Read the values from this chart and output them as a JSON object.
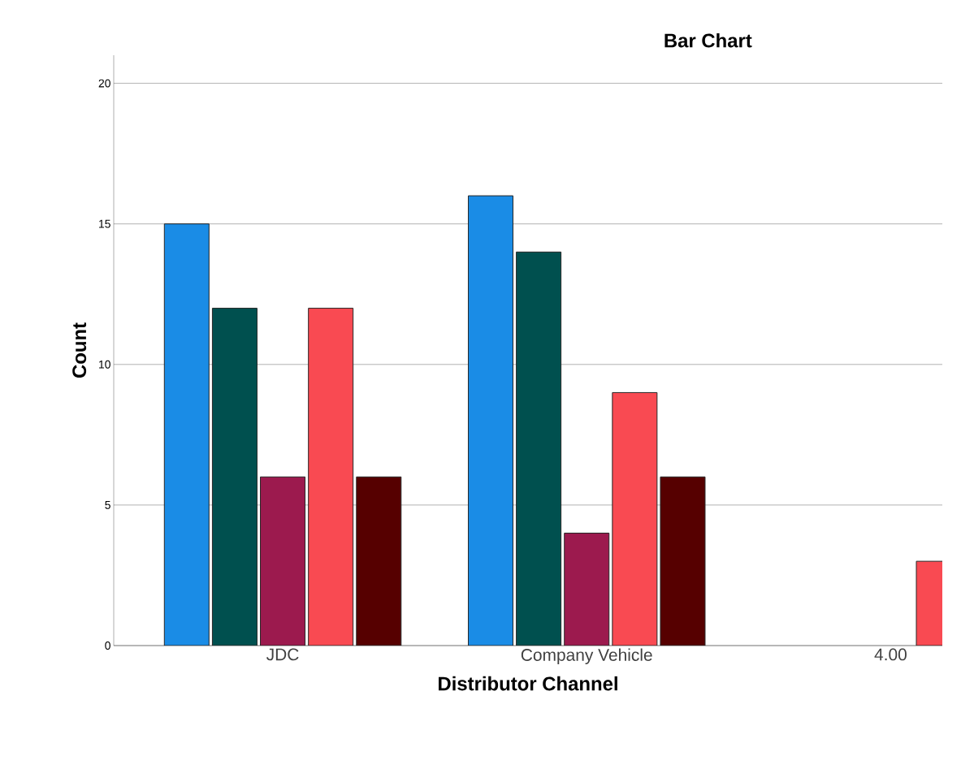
{
  "chart_data": {
    "type": "bar",
    "title": "Bar Chart",
    "xlabel": "Distributor Channel",
    "ylabel": "Count",
    "categories": [
      "JDC",
      "Company Vehicle",
      "4.00"
    ],
    "series": [
      {
        "color": "#1a8ce6",
        "values": [
          15,
          16,
          null
        ]
      },
      {
        "color": "#00504f",
        "values": [
          12,
          14,
          null
        ]
      },
      {
        "color": "#9c1a4e",
        "values": [
          6,
          4,
          null
        ]
      },
      {
        "color": "#f94a52",
        "values": [
          12,
          9,
          3
        ]
      },
      {
        "color": "#560000",
        "values": [
          6,
          6,
          null
        ]
      }
    ],
    "ylim": [
      0,
      21
    ],
    "yticks": [
      0,
      5,
      10,
      15,
      20
    ],
    "grid": "y",
    "legend": false
  }
}
